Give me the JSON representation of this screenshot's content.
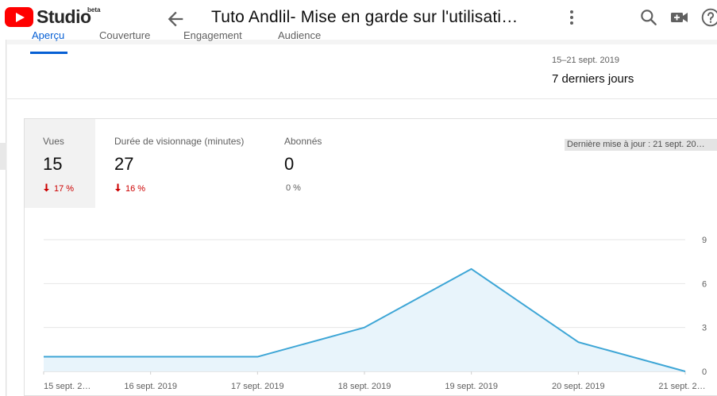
{
  "header": {
    "logo_text": "Studio",
    "logo_badge": "beta",
    "title": "Tuto Andlil- Mise en garde sur l'utilisati…",
    "icons": [
      "back-arrow-icon",
      "more-vert-icon",
      "search-icon",
      "create-video-icon",
      "help-icon"
    ]
  },
  "tabs": [
    {
      "label": "Aperçu",
      "active": true
    },
    {
      "label": "Couverture",
      "active": false
    },
    {
      "label": "Engagement",
      "active": false
    },
    {
      "label": "Audience",
      "active": false
    }
  ],
  "date_filter": {
    "range": "15–21 sept. 2019",
    "period": "7 derniers jours"
  },
  "metrics": [
    {
      "label": "Vues",
      "value": "15",
      "change": "17 %",
      "direction": "down",
      "selected": true
    },
    {
      "label": "Durée de visionnage (minutes)",
      "value": "27",
      "change": "16 %",
      "direction": "down",
      "selected": false
    },
    {
      "label": "Abonnés",
      "value": "0",
      "change": "0 %",
      "direction": "none",
      "selected": false
    }
  ],
  "last_update": "Dernière mise à jour : 21 sept. 20…",
  "colors": {
    "accent": "#065fd4",
    "line": "#3ea6d6",
    "fill": "#e8f4fb",
    "negative": "#cc0000"
  },
  "chart_data": {
    "type": "area",
    "x": [
      "15 sept. 2…",
      "16 sept. 2019",
      "17 sept. 2019",
      "18 sept. 2019",
      "19 sept. 2019",
      "20 sept. 2019",
      "21 sept. 2…"
    ],
    "series": [
      {
        "values": [
          1,
          1,
          1,
          3,
          7,
          2,
          0
        ]
      }
    ],
    "yticks": [
      0,
      3,
      6,
      9
    ],
    "ylim": [
      0,
      9
    ],
    "yaxis_position": "right",
    "grid": true
  }
}
